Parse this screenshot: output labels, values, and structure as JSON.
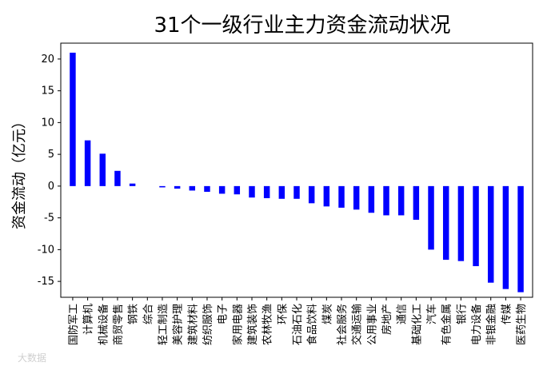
{
  "chart_data": {
    "type": "bar",
    "title": "31个一级行业主力资金流动状况",
    "xlabel": "",
    "ylabel": "资金流动（亿元）",
    "ylim": [
      -17.5,
      22.5
    ],
    "yticks": [
      -15,
      -10,
      -5,
      0,
      5,
      10,
      15,
      20
    ],
    "bar_color": "#0000ff",
    "grid": false,
    "categories": [
      "国防军工",
      "计算机",
      "机械设备",
      "商贸零售",
      "钢铁",
      "综合",
      "轻工制造",
      "美容护理",
      "建筑材料",
      "纺织服饰",
      "电子",
      "家用电器",
      "建筑装饰",
      "农林牧渔",
      "环保",
      "石油石化",
      "食品饮料",
      "煤炭",
      "社会服务",
      "交通运输",
      "公用事业",
      "房地产",
      "通信",
      "基础化工",
      "汽车",
      "有色金属",
      "银行",
      "电力设备",
      "非银金融",
      "传媒",
      "医药生物"
    ],
    "values": [
      21.0,
      7.2,
      5.1,
      2.4,
      0.4,
      0.0,
      -0.2,
      -0.4,
      -0.7,
      -0.9,
      -1.2,
      -1.3,
      -1.8,
      -1.9,
      -2.0,
      -2.0,
      -2.7,
      -3.2,
      -3.4,
      -3.7,
      -4.2,
      -4.6,
      -4.6,
      -5.3,
      -10.0,
      -11.6,
      -11.8,
      -12.6,
      -15.2,
      -16.2,
      -16.7
    ]
  },
  "watermark": "大数据"
}
